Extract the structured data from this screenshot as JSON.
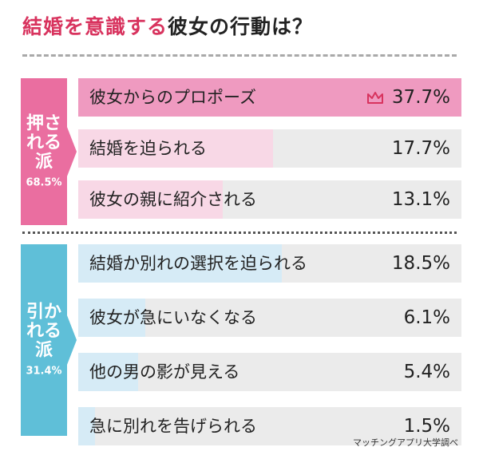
{
  "title": {
    "accent": "結婚を意識する",
    "rest": "彼女の行動は？"
  },
  "colors": {
    "accent": "#d8335e",
    "pink_group": "#ea6ea0",
    "blue_group": "#5fbfd8",
    "pink_top": "#ef9ac0",
    "pink_light": "#f8d8e6",
    "blue_light": "#d6ebf6",
    "track": "#ebebeb"
  },
  "groups": [
    {
      "name": "押される派",
      "percent": "68.5%"
    },
    {
      "name": "引かれる派",
      "percent": "31.4%"
    }
  ],
  "chart_data": {
    "type": "bar",
    "orientation": "horizontal",
    "title": "結婚を意識する彼女の行動は？",
    "categories": [
      "彼女からのプロポーズ",
      "結婚を迫られる",
      "彼女の親に紹介される",
      "結婚か別れの選択を迫られる",
      "彼女が急にいなくなる",
      "他の男の影が見える",
      "急に別れを告げられる"
    ],
    "values": [
      37.7,
      17.7,
      13.1,
      18.5,
      6.1,
      5.4,
      1.5
    ],
    "value_labels": [
      "37.7%",
      "17.7%",
      "13.1%",
      "18.5%",
      "6.1%",
      "5.4%",
      "1.5%"
    ],
    "group_index": [
      0,
      0,
      0,
      1,
      1,
      1,
      1
    ],
    "highlight_index": 0,
    "xlim": [
      0,
      40
    ]
  },
  "source": "マッチングアプリ大学調べ"
}
